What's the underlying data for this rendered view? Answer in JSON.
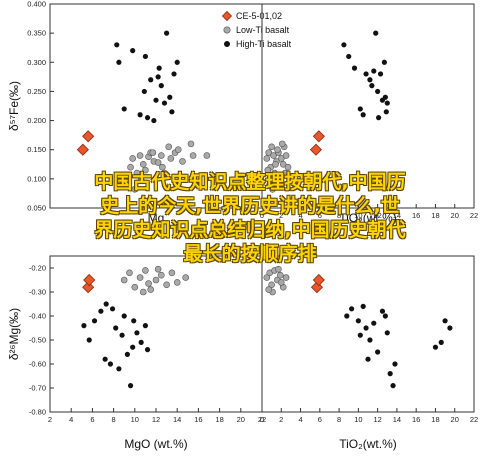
{
  "overlay_text": {
    "line1": "中国古代史知识点整理按朝代,中国历",
    "line2": "史上的今天,世界历史讲的是什么,世",
    "line3": "界历史知识点总结归纳,中国历史朝代",
    "line4": "最长的按顺序排"
  },
  "colors": {
    "ce_sample": "#e8572a",
    "low_ti": "#a9a9a9",
    "high_ti": "#111111",
    "axis": "#333333"
  },
  "chart_data": [
    {
      "type": "scatter",
      "panel": "top-left",
      "xlabel": "Mg",
      "ylabel": "δ⁵⁷Fe(‰)",
      "xlim": [
        2,
        22
      ],
      "ylim": [
        0.05,
        0.4
      ],
      "x_ticks": [],
      "y_ticks": [
        "0.050",
        "0.100",
        "0.150",
        "0.200",
        "0.250",
        "0.300",
        "0.350",
        "0.400"
      ],
      "legend": {
        "placement": "top-right",
        "entries": [
          "CE-5-01,02",
          "Low-Ti basalt",
          "High-Ti basalt"
        ]
      },
      "series": [
        {
          "name": "CE-5-01,02",
          "marker": "diamond",
          "x": [
            5.1,
            5.6
          ],
          "y": [
            0.15,
            0.173
          ]
        },
        {
          "name": "Low-Ti basalt",
          "marker": "circle-gray",
          "x": [
            9.3,
            9.6,
            9.8,
            10.2,
            10.5,
            10.8,
            11.0,
            11.3,
            11.5,
            11.8,
            12.2,
            12.5,
            12.8,
            13.2,
            13.4,
            13.8,
            14.5,
            15.3,
            15.5,
            15.8,
            16.8,
            10.0,
            10.6,
            11.7,
            12.6,
            14.1
          ],
          "y": [
            0.105,
            0.12,
            0.135,
            0.11,
            0.14,
            0.125,
            0.115,
            0.138,
            0.145,
            0.13,
            0.128,
            0.14,
            0.11,
            0.155,
            0.135,
            0.145,
            0.13,
            0.16,
            0.14,
            0.09,
            0.14,
            0.082,
            0.098,
            0.145,
            0.12,
            0.15
          ]
        },
        {
          "name": "High-Ti basalt",
          "marker": "circle-black",
          "x": [
            8.3,
            8.5,
            9.0,
            9.8,
            10.5,
            11.0,
            11.5,
            11.8,
            12.3,
            12.5,
            13.0,
            13.3,
            13.7,
            14.0,
            11.2,
            12.0,
            12.8,
            10.9,
            13.5,
            12.2
          ],
          "y": [
            0.33,
            0.3,
            0.22,
            0.32,
            0.21,
            0.31,
            0.27,
            0.2,
            0.29,
            0.26,
            0.35,
            0.24,
            0.28,
            0.3,
            0.205,
            0.235,
            0.23,
            0.25,
            0.215,
            0.275
          ]
        }
      ]
    },
    {
      "type": "scatter",
      "panel": "top-right",
      "xlabel": "TiO₂(wt.%)",
      "ylabel": "",
      "xlim": [
        0,
        22
      ],
      "ylim": [
        0.05,
        0.4
      ],
      "x_ticks": [
        "0",
        "2",
        "4",
        "6",
        "8",
        "10",
        "12",
        "14",
        "16",
        "18",
        "20",
        "22"
      ],
      "y_ticks": [],
      "series": [
        {
          "name": "CE-5-01,02",
          "marker": "diamond",
          "x": [
            5.6,
            5.9
          ],
          "y": [
            0.15,
            0.173
          ]
        },
        {
          "name": "Low-Ti basalt",
          "marker": "circle-gray",
          "x": [
            0.5,
            0.7,
            0.9,
            1.0,
            1.2,
            1.3,
            1.5,
            1.7,
            1.8,
            2.0,
            2.2,
            2.3,
            2.5,
            2.7,
            0.8,
            1.1,
            1.6,
            2.1,
            2.4,
            1.4,
            0.6,
            1.9
          ],
          "y": [
            0.135,
            0.145,
            0.12,
            0.155,
            0.14,
            0.11,
            0.13,
            0.145,
            0.1,
            0.135,
            0.125,
            0.155,
            0.14,
            0.12,
            0.09,
            0.082,
            0.15,
            0.16,
            0.11,
            0.125,
            0.115,
            0.098
          ]
        },
        {
          "name": "High-Ti basalt",
          "marker": "circle-black",
          "x": [
            8.5,
            9.0,
            9.6,
            10.2,
            10.8,
            11.2,
            11.6,
            11.8,
            12.0,
            12.3,
            12.5,
            12.7,
            12.8,
            13.0,
            12.1,
            11.4,
            12.9,
            10.5
          ],
          "y": [
            0.33,
            0.31,
            0.29,
            0.22,
            0.28,
            0.27,
            0.285,
            0.35,
            0.25,
            0.28,
            0.235,
            0.3,
            0.24,
            0.23,
            0.205,
            0.26,
            0.215,
            0.21
          ]
        }
      ]
    },
    {
      "type": "scatter",
      "panel": "bottom-left",
      "xlabel": "MgO (wt.%)",
      "ylabel": "δ²⁶Mg(‰)",
      "xlim": [
        2,
        22
      ],
      "ylim": [
        -0.8,
        -0.15
      ],
      "x_ticks": [
        "2",
        "4",
        "6",
        "8",
        "10",
        "12",
        "14",
        "16",
        "18",
        "20",
        "22"
      ],
      "y_ticks": [
        "-0.80",
        "-0.70",
        "-0.60",
        "-0.50",
        "-0.40",
        "-0.30",
        "-0.20"
      ],
      "series": [
        {
          "name": "CE-5-01,02",
          "marker": "diamond",
          "x": [
            5.6,
            5.7
          ],
          "y": [
            -0.28,
            -0.25
          ]
        },
        {
          "name": "Low-Ti basalt",
          "marker": "circle-gray",
          "x": [
            9.0,
            9.5,
            10.0,
            10.5,
            11.0,
            11.5,
            12.0,
            12.5,
            13.0,
            13.5,
            14.0,
            14.8,
            10.8,
            12.2,
            11.3
          ],
          "y": [
            -0.25,
            -0.22,
            -0.28,
            -0.24,
            -0.21,
            -0.29,
            -0.25,
            -0.23,
            -0.27,
            -0.22,
            -0.26,
            -0.24,
            -0.3,
            -0.205,
            -0.265
          ]
        },
        {
          "name": "High-Ti basalt",
          "marker": "circle-black",
          "x": [
            5.2,
            5.7,
            6.2,
            6.8,
            7.3,
            7.7,
            7.9,
            8.2,
            8.5,
            8.8,
            9.0,
            9.3,
            9.6,
            9.8,
            10.2,
            10.6,
            11.0,
            11.2,
            9.9,
            7.2
          ],
          "y": [
            -0.44,
            -0.5,
            -0.42,
            -0.38,
            -0.35,
            -0.6,
            -0.37,
            -0.45,
            -0.62,
            -0.48,
            -0.4,
            -0.56,
            -0.69,
            -0.53,
            -0.47,
            -0.51,
            -0.44,
            -0.54,
            -0.42,
            -0.58
          ]
        }
      ]
    },
    {
      "type": "scatter",
      "panel": "bottom-right",
      "xlabel": "TiO₂(wt.%)",
      "ylabel": "",
      "xlim": [
        0,
        22
      ],
      "ylim": [
        -0.8,
        -0.15
      ],
      "x_ticks": [
        "0",
        "2",
        "4",
        "6",
        "8",
        "10",
        "12",
        "14",
        "16",
        "18",
        "20",
        "22"
      ],
      "y_ticks": [],
      "series": [
        {
          "name": "CE-5-01,02",
          "marker": "diamond",
          "x": [
            5.7,
            5.9
          ],
          "y": [
            -0.28,
            -0.25
          ]
        },
        {
          "name": "Low-Ti basalt",
          "marker": "circle-gray",
          "x": [
            0.5,
            0.8,
            1.0,
            1.3,
            1.6,
            1.9,
            2.2,
            2.5,
            1.1,
            1.7,
            2.0,
            0.7
          ],
          "y": [
            -0.24,
            -0.22,
            -0.27,
            -0.21,
            -0.25,
            -0.23,
            -0.28,
            -0.24,
            -0.3,
            -0.205,
            -0.26,
            -0.29
          ]
        },
        {
          "name": "High-Ti basalt",
          "marker": "circle-black",
          "x": [
            8.8,
            9.3,
            10.0,
            10.5,
            10.8,
            11.2,
            11.6,
            12.0,
            12.5,
            13.0,
            13.3,
            13.8,
            18.0,
            18.6,
            19.0,
            19.5,
            11.0,
            12.8,
            10.2,
            13.6
          ],
          "y": [
            -0.4,
            -0.37,
            -0.42,
            -0.36,
            -0.45,
            -0.5,
            -0.43,
            -0.55,
            -0.38,
            -0.47,
            -0.64,
            -0.6,
            -0.53,
            -0.51,
            -0.42,
            -0.45,
            -0.58,
            -0.4,
            -0.48,
            -0.69
          ]
        }
      ]
    }
  ]
}
